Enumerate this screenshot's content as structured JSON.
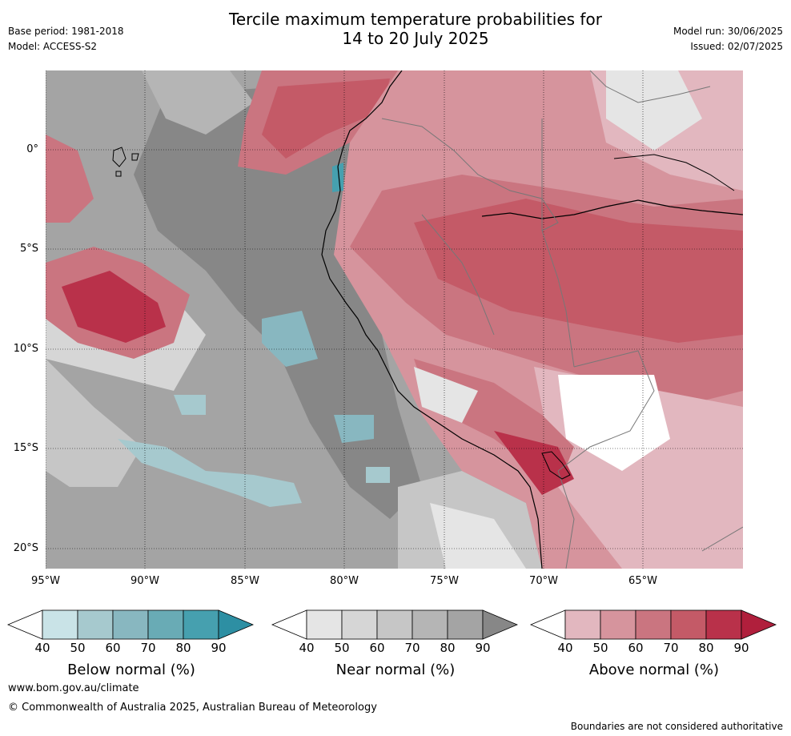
{
  "header": {
    "title_line1": "Tercile maximum temperature probabilities for",
    "title_line2": "14 to 20 July 2025",
    "base_period": "Base period: 1981-2018",
    "model": "Model: ACCESS-S2",
    "model_run": "Model run: 30/06/2025",
    "issued": "Issued: 02/07/2025"
  },
  "map": {
    "lat_labels": [
      "0°",
      "5°S",
      "10°S",
      "15°S",
      "20°S"
    ],
    "lon_labels": [
      "95°W",
      "90°W",
      "85°W",
      "80°W",
      "75°W",
      "70°W",
      "65°W"
    ]
  },
  "legend": {
    "below": {
      "title": "Below normal (%)",
      "ticks": [
        "40",
        "50",
        "60",
        "70",
        "80",
        "90"
      ],
      "colors": [
        "#c9e3e7",
        "#a6c9ce",
        "#88b7c0",
        "#69abb5",
        "#46a0af",
        "#2d8fa3"
      ]
    },
    "near": {
      "title": "Near normal (%)",
      "ticks": [
        "40",
        "50",
        "60",
        "70",
        "80",
        "90"
      ],
      "colors": [
        "#e5e5e5",
        "#d6d6d6",
        "#c6c6c6",
        "#b5b5b5",
        "#a4a4a4",
        "#878787"
      ]
    },
    "above": {
      "title": "Above normal (%)",
      "ticks": [
        "40",
        "50",
        "60",
        "70",
        "80",
        "90"
      ],
      "colors": [
        "#e2b7bf",
        "#d6949d",
        "#ca7580",
        "#c45a67",
        "#b9314a",
        "#b01f3c"
      ]
    }
  },
  "footer": {
    "url": "www.bom.gov.au/climate",
    "copyright": "© Commonwealth of Australia 2025, Australian Bureau of Meteorology",
    "note": "Boundaries are not considered authoritative"
  }
}
